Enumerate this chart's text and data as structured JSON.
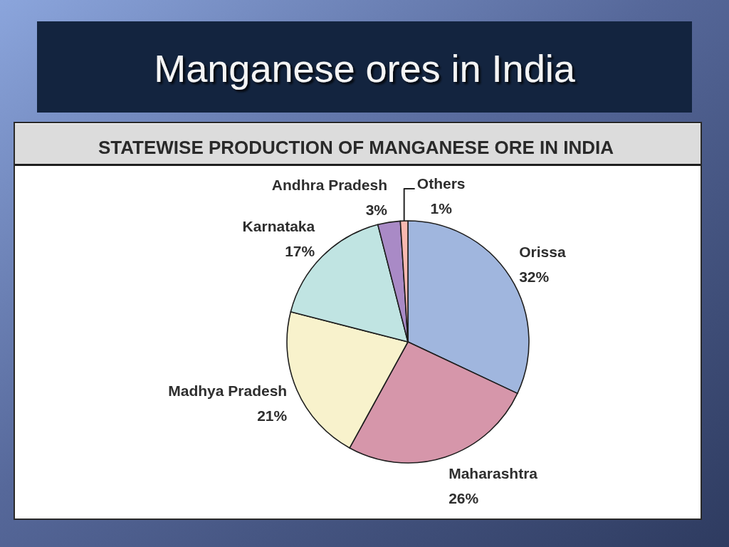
{
  "chart_data": {
    "type": "pie",
    "title": "Manganese ores in India",
    "subtitle": "STATEWISE PRODUCTION OF MANGANESE ORE IN INDIA",
    "categories": [
      "Orissa",
      "Maharashtra",
      "Madhya Pradesh",
      "Karnataka",
      "Andhra Pradesh",
      "Others"
    ],
    "values": [
      32,
      26,
      21,
      17,
      3,
      1
    ],
    "colors": [
      "#a0b6de",
      "#d696aa",
      "#f8f2cc",
      "#c0e4e2",
      "#a98ac6",
      "#f8b8b0"
    ],
    "value_labels": [
      "32%",
      "26%",
      "21%",
      "17%",
      "3%",
      "1%"
    ]
  }
}
